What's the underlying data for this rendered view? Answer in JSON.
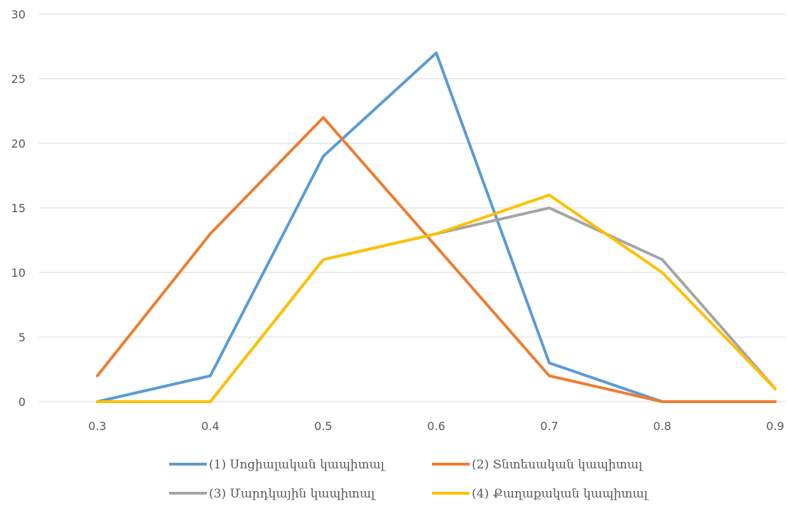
{
  "chart_data": {
    "type": "line",
    "title": "",
    "xlabel": "",
    "ylabel": "",
    "categories": [
      "0.3",
      "0.4",
      "0.5",
      "0.6",
      "0.7",
      "0.8",
      "0.9"
    ],
    "ylim": [
      0,
      30
    ],
    "yticks": [
      0,
      5,
      10,
      15,
      20,
      25,
      30
    ],
    "grid": "horizontal",
    "legend_position": "bottom",
    "series": [
      {
        "name": "(1) Սոցիալական կապիտալ",
        "color": "#5B9BD5",
        "values": [
          0,
          2,
          19,
          27,
          3,
          0,
          0
        ]
      },
      {
        "name": "(2) Տնտեսական կապիտալ",
        "color": "#ED7D31",
        "values": [
          2,
          13,
          22,
          12,
          2,
          0,
          0
        ]
      },
      {
        "name": "(3) Մարդկային կապիտալ",
        "color": "#A5A5A5",
        "values": [
          0,
          0,
          11,
          13,
          15,
          11,
          1
        ]
      },
      {
        "name": "(4) Քաղաքական կապիտալ",
        "color": "#FFC000",
        "values": [
          0,
          0,
          11,
          13,
          16,
          10,
          1
        ]
      }
    ]
  }
}
